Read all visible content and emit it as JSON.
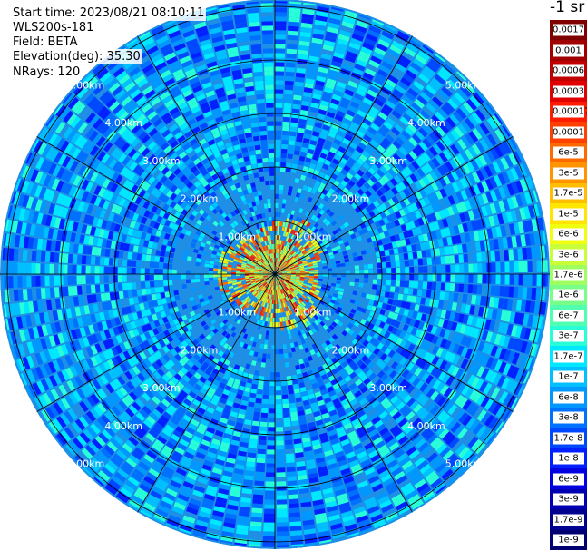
{
  "header": {
    "start_time": "Start time: 2023/08/21 08:10:11",
    "instrument": "WLS200s-181",
    "field": "Field: BETA",
    "elevation": "Elevation(deg): 35.30",
    "nrays": "NRays: 120"
  },
  "colorbar": {
    "title": "-1 sr",
    "levels": [
      {
        "label": "0.0017",
        "color": "#7f0000"
      },
      {
        "label": "0.001",
        "color": "#a00000"
      },
      {
        "label": "0.0006",
        "color": "#c00000"
      },
      {
        "label": "0.0003",
        "color": "#e00000"
      },
      {
        "label": "0.00017",
        "color": "#ff1a00"
      },
      {
        "label": "0.0001",
        "color": "#ff4000"
      },
      {
        "label": "6e-5",
        "color": "#ff6a00"
      },
      {
        "label": "3e-5",
        "color": "#ff9400"
      },
      {
        "label": "1.7e-5",
        "color": "#ffbe00"
      },
      {
        "label": "1e-5",
        "color": "#ffe600"
      },
      {
        "label": "6e-6",
        "color": "#f0ff10"
      },
      {
        "label": "3e-6",
        "color": "#c8ff38"
      },
      {
        "label": "1.7e-6",
        "color": "#a0ff60"
      },
      {
        "label": "1e-6",
        "color": "#78ff88"
      },
      {
        "label": "6e-7",
        "color": "#50ffb0"
      },
      {
        "label": "3e-7",
        "color": "#28ffd8"
      },
      {
        "label": "1.7e-7",
        "color": "#00e8ff"
      },
      {
        "label": "1e-7",
        "color": "#00c0ff"
      },
      {
        "label": "6e-8",
        "color": "#0098ff"
      },
      {
        "label": "3e-8",
        "color": "#0070ff"
      },
      {
        "label": "1.7e-8",
        "color": "#0048ff"
      },
      {
        "label": "1e-8",
        "color": "#0020ff"
      },
      {
        "label": "6e-9",
        "color": "#0000e0"
      },
      {
        "label": "3e-9",
        "color": "#0000b0"
      },
      {
        "label": "1.7e-9",
        "color": "#000090"
      },
      {
        "label": "1e-9",
        "color": "#000070"
      }
    ]
  },
  "chart_data": {
    "type": "heatmap",
    "projection": "polar",
    "rays": 120,
    "range_rings_km": [
      1,
      2,
      3,
      4,
      5
    ],
    "ring_labels": [
      "1.00km",
      "2.00km",
      "3.00km",
      "4.00km",
      "5.00km"
    ],
    "max_range_km": 5.1,
    "azimuth_lines_deg": [
      0,
      30,
      60,
      90,
      120,
      150,
      180,
      210,
      240,
      270,
      300,
      330
    ],
    "ring_label_bearings_deg": [
      45,
      135,
      225,
      315
    ],
    "color_scale": "log",
    "value_range": [
      1e-09,
      0.0017
    ],
    "near_field": {
      "max_range_km": 1.1,
      "typical_value": 1.7e-05,
      "peak_value": 0.0003
    },
    "far_field": {
      "typical_value": 5e-08
    },
    "grid": true
  }
}
